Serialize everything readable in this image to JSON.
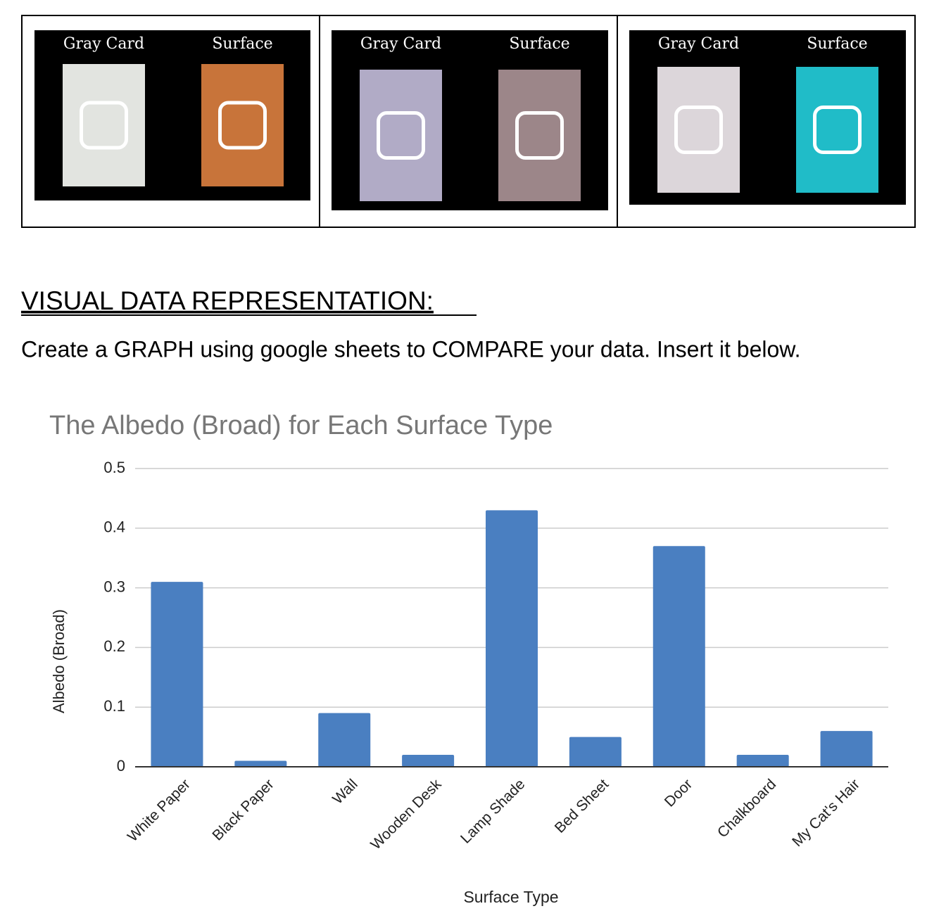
{
  "panels": [
    {
      "left_label": "Gray Card",
      "right_label": "Surface"
    },
    {
      "left_label": "Gray Card",
      "right_label": "Surface"
    },
    {
      "left_label": "Gray Card",
      "right_label": "Surface"
    }
  ],
  "heading": "VISUAL DATA REPRESENTATION:",
  "instruction": "Create a GRAPH using google sheets to COMPARE your data. Insert it below.",
  "chart_data": {
    "type": "bar",
    "title": "The Albedo (Broad) for Each Surface Type",
    "x_label": "Surface Type",
    "y_label": "Albedo (Broad)",
    "categories": [
      "White Paper",
      "Black Paper",
      "Wall",
      "Wooden Desk",
      "Lamp Shade",
      "Bed Sheet",
      "Door",
      "Chalkboard",
      "My Cat's Hair"
    ],
    "values": [
      0.31,
      0.01,
      0.09,
      0.02,
      0.43,
      0.05,
      0.37,
      0.02,
      0.06
    ],
    "color": "#4a7fc1",
    "ylim": [
      0,
      0.5
    ],
    "yticks": [
      0,
      0.1,
      0.2,
      0.3,
      0.4,
      0.5
    ],
    "grid": true
  }
}
